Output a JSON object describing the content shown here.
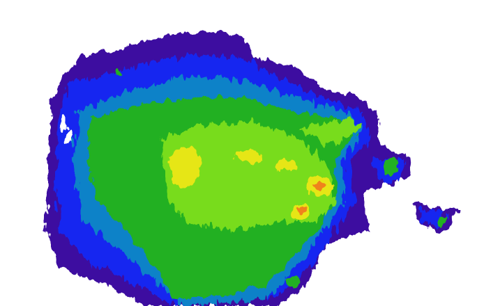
{
  "radar": {
    "palette": {
      "very_light": "#3c0ca0",
      "light": "#1428f0",
      "light_moderate": "#0a82c8",
      "moderate": "#20b020",
      "moderate_heavy": "#78dc1e",
      "heavy": "#e6e614",
      "very_heavy": "#f0821e"
    }
  }
}
